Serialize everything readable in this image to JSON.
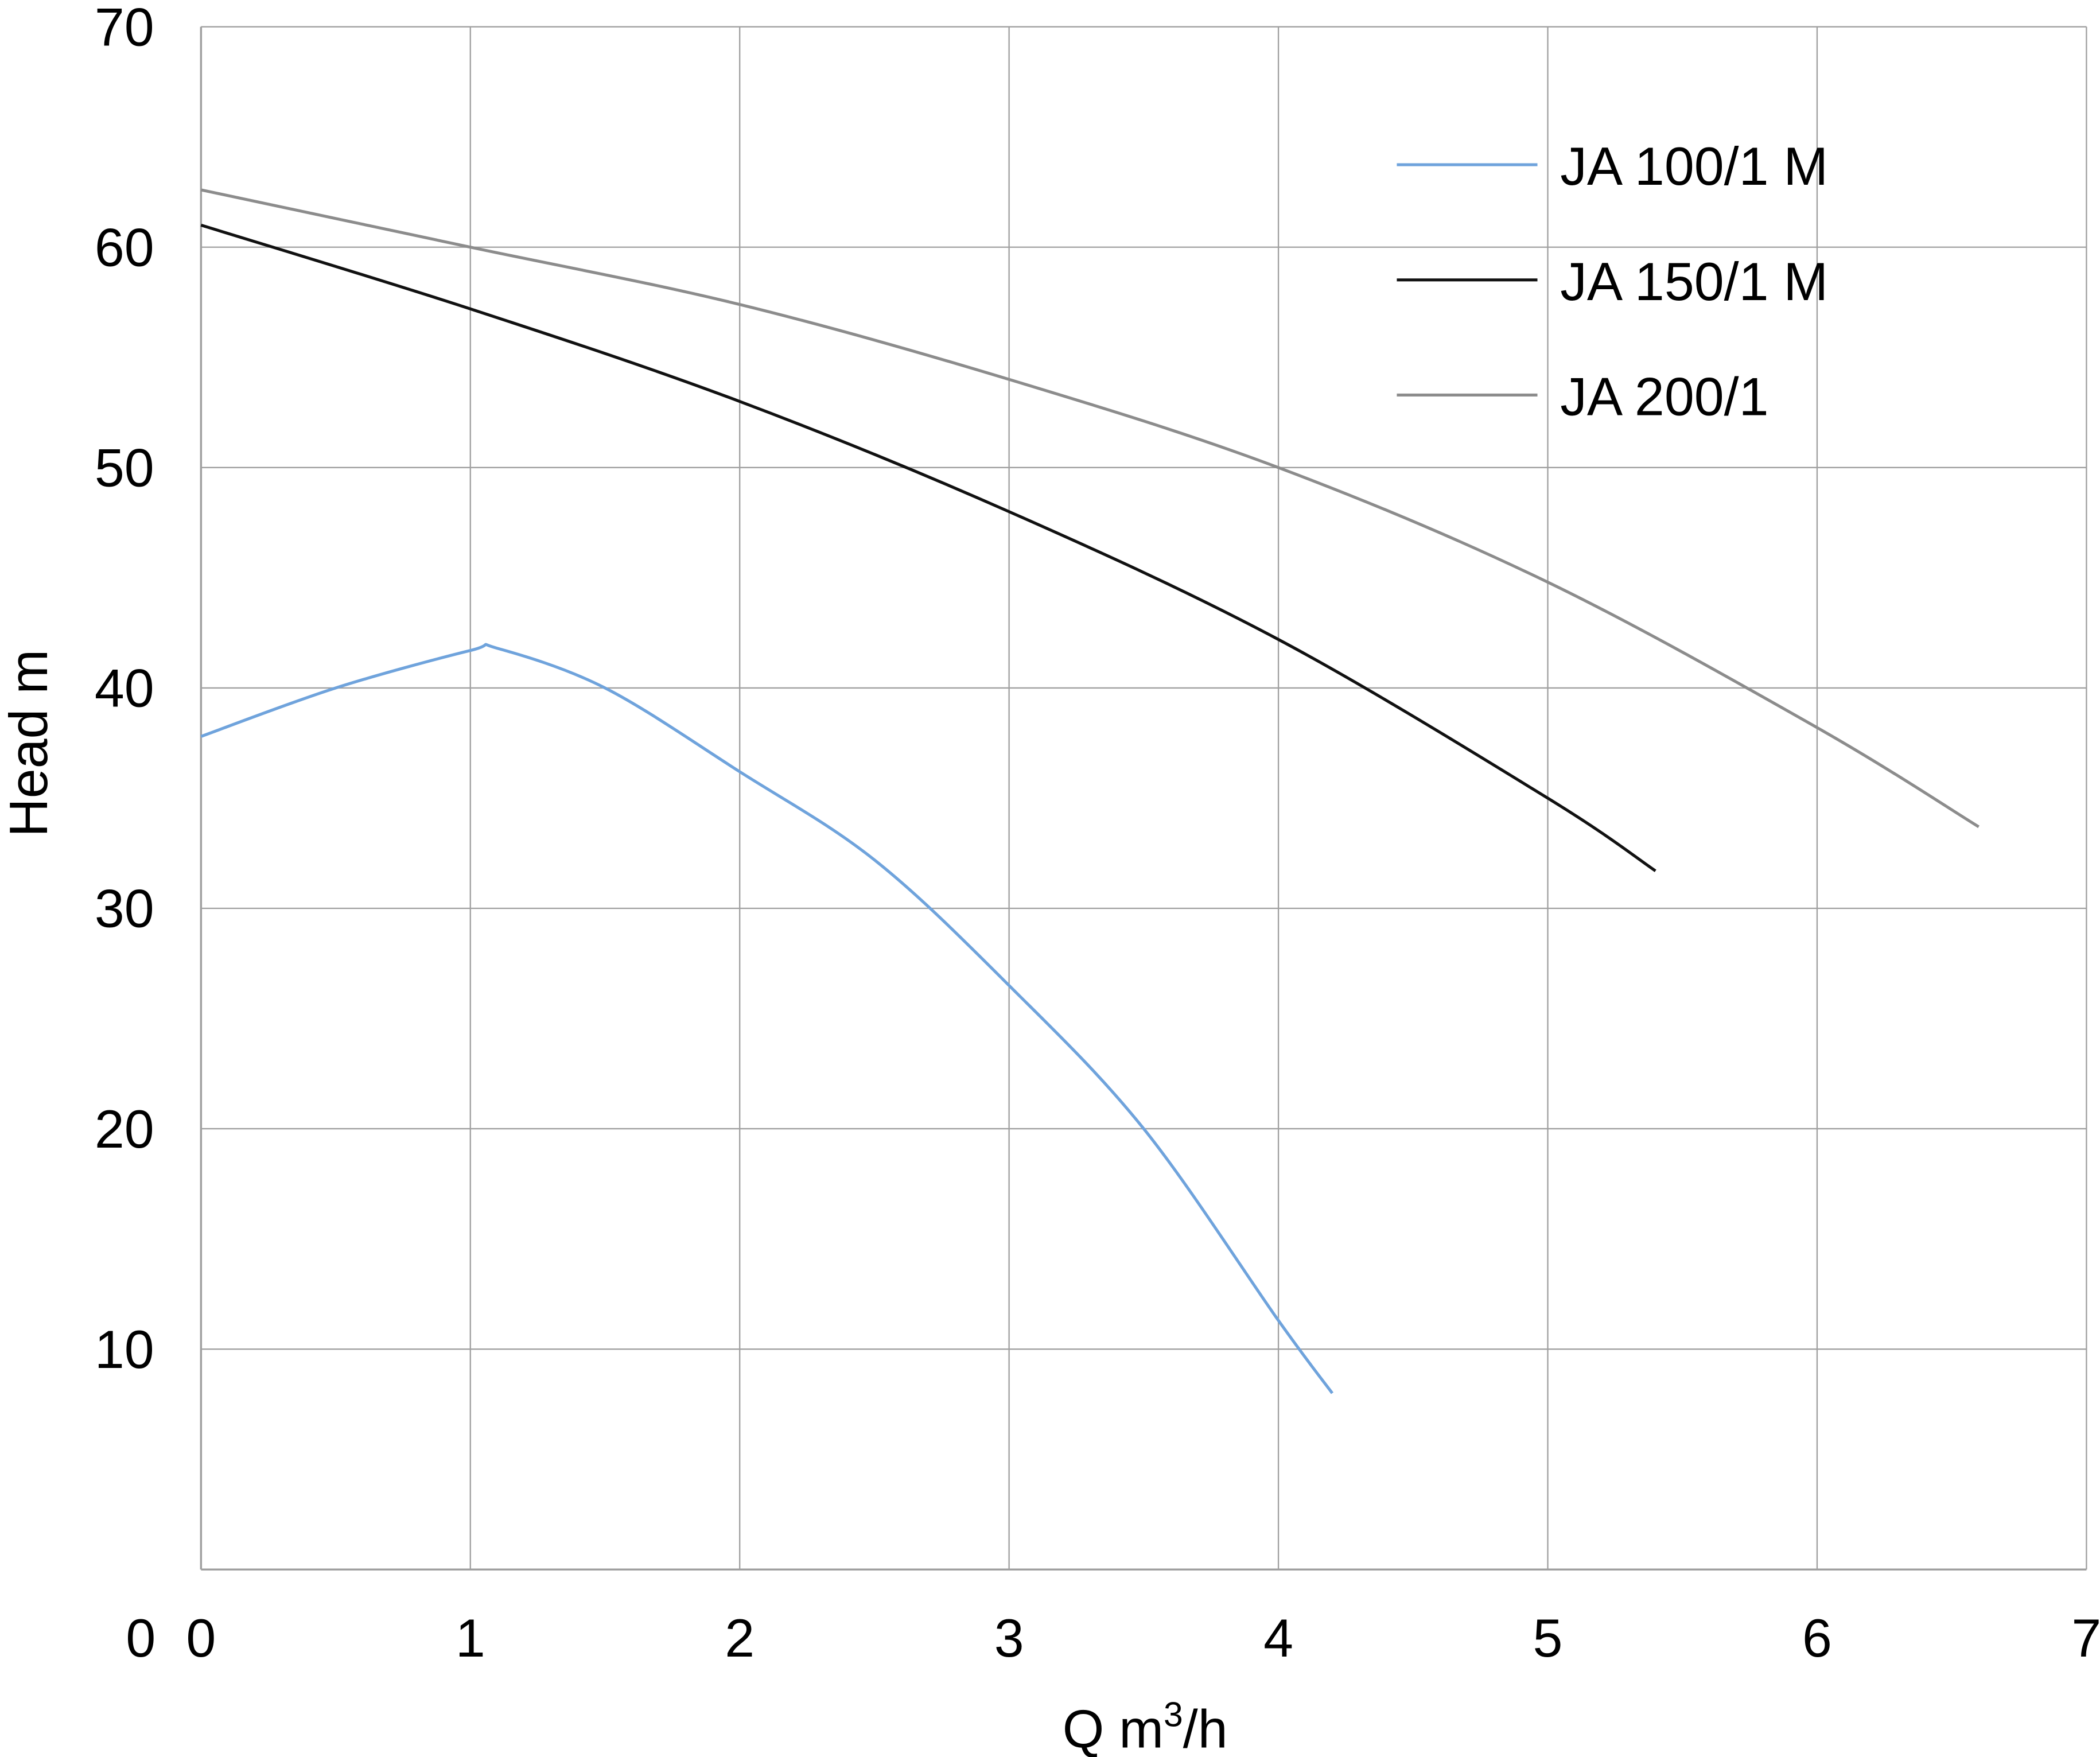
{
  "chart_data": {
    "type": "line",
    "title": "",
    "xlabel": "Q m",
    "xlabel_sup": "3",
    "xlabel_suffix": "/h",
    "ylabel": "Head m",
    "xlim": [
      0,
      7
    ],
    "ylim": [
      0,
      70
    ],
    "xticks": [
      0,
      1,
      2,
      3,
      4,
      5,
      6,
      7
    ],
    "yticks": [
      10,
      20,
      30,
      40,
      50,
      60,
      70
    ],
    "y_zero_label": "0",
    "grid": true,
    "legend_position": "top-right",
    "series": [
      {
        "name": "JA 100/1 M",
        "color": "#6fa3dc",
        "x": [
          0,
          0.5,
          1,
          1.1,
          1.5,
          2,
          2.5,
          3,
          3.5,
          4,
          4.2
        ],
        "y": [
          37.8,
          40,
          41.7,
          41.8,
          40,
          36.2,
          32.2,
          26.5,
          20,
          11.3,
          8
        ]
      },
      {
        "name": "JA 150/1 M",
        "color": "#111111",
        "x": [
          0,
          1,
          2,
          3,
          4,
          5,
          5.4
        ],
        "y": [
          61,
          57.2,
          53,
          48,
          42.2,
          35,
          31.7
        ]
      },
      {
        "name": "JA 200/1",
        "color": "#8c8c8c",
        "x": [
          0,
          1,
          2,
          3,
          4,
          5,
          6,
          6.6
        ],
        "y": [
          62.6,
          60,
          57.4,
          54,
          50,
          44.8,
          38.2,
          33.7
        ]
      }
    ]
  }
}
